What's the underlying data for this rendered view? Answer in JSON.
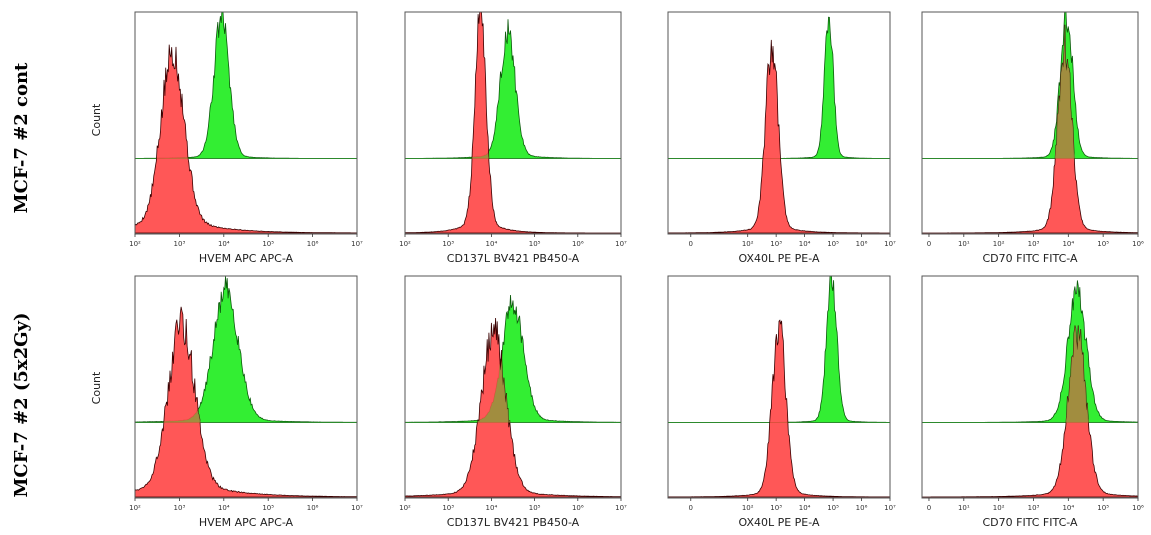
{
  "rows": [
    {
      "label": "MCF-7 #2 cont",
      "count_label": "Count"
    },
    {
      "label": "MCF-7 #2 (5x2Gy)",
      "count_label": "Count"
    }
  ],
  "colors": {
    "control": "#ff4040",
    "stained": "#33ee33",
    "overlap": "#8aa040",
    "outline": "#3a0000",
    "frame": "#555555"
  },
  "axis_types": {
    "log2to7": {
      "ticks": [
        {
          "v": 2,
          "t": "10²"
        },
        {
          "v": 3,
          "t": "10³"
        },
        {
          "v": 4,
          "t": "10⁴"
        },
        {
          "v": 5,
          "t": "10⁵"
        },
        {
          "v": 6,
          "t": "10⁶"
        },
        {
          "v": 7,
          "t": "10⁷"
        }
      ]
    },
    "biexp7": {
      "ticks": [
        {
          "v": 0,
          "t": "0"
        },
        {
          "v": 2,
          "t": "10²"
        },
        {
          "v": 3,
          "t": "10³"
        },
        {
          "v": 4,
          "t": "10⁴"
        },
        {
          "v": 5,
          "t": "10⁵"
        },
        {
          "v": 6,
          "t": "10⁶"
        },
        {
          "v": 7,
          "t": "10⁷"
        }
      ]
    },
    "biexp6": {
      "ticks": [
        {
          "v": 0,
          "t": "0"
        },
        {
          "v": 1,
          "t": "10¹"
        },
        {
          "v": 2,
          "t": "10²"
        },
        {
          "v": 3,
          "t": "10³"
        },
        {
          "v": 4,
          "t": "10⁴"
        },
        {
          "v": 5,
          "t": "10⁵"
        },
        {
          "v": 6,
          "t": "10⁶"
        }
      ]
    }
  },
  "chart_data": [
    {
      "type": "area",
      "row": 0,
      "col": 0,
      "axis": "log2to7",
      "xlabel": "HVEM APC APC-A",
      "ylabel": "Count",
      "series": [
        {
          "role": "control",
          "peak_log": 2.85,
          "width": 0.26,
          "height": 0.75,
          "tail": 0.12
        },
        {
          "role": "stained",
          "peak_log": 3.95,
          "width": 0.17,
          "height": 0.95,
          "tail": 0.03
        }
      ]
    },
    {
      "type": "area",
      "row": 0,
      "col": 1,
      "axis": "log2to7",
      "xlabel": "CD137L BV421 PB450-A",
      "ylabel": "",
      "series": [
        {
          "role": "control",
          "peak_log": 3.75,
          "width": 0.13,
          "height": 0.95,
          "tail": 0.08
        },
        {
          "role": "stained",
          "peak_log": 4.38,
          "width": 0.17,
          "height": 0.84,
          "tail": 0.05
        }
      ]
    },
    {
      "type": "area",
      "row": 0,
      "col": 2,
      "axis": "biexp7",
      "xlabel": "OX40L PE PE-A",
      "ylabel": "",
      "series": [
        {
          "role": "control",
          "peak_log": 2.85,
          "width": 0.22,
          "height": 0.82,
          "tail": 0.06
        },
        {
          "role": "stained",
          "peak_log": 4.85,
          "width": 0.15,
          "height": 0.98,
          "tail": 0.03
        }
      ]
    },
    {
      "type": "area",
      "row": 0,
      "col": 3,
      "axis": "biexp6",
      "xlabel": "CD70 FITC FITC-A",
      "ylabel": "",
      "series": [
        {
          "role": "control",
          "peak_log": 3.9,
          "width": 0.2,
          "height": 0.82,
          "tail": 0.05
        },
        {
          "role": "stained",
          "peak_log": 3.95,
          "width": 0.18,
          "height": 0.95,
          "tail": 0.03
        }
      ]
    },
    {
      "type": "area",
      "row": 1,
      "col": 0,
      "axis": "log2to7",
      "xlabel": "HVEM APC APC-A",
      "ylabel": "Count",
      "series": [
        {
          "role": "control",
          "peak_log": 3.05,
          "width": 0.3,
          "height": 0.72,
          "tail": 0.12
        },
        {
          "role": "stained",
          "peak_log": 4.05,
          "width": 0.28,
          "height": 0.88,
          "tail": 0.04
        }
      ]
    },
    {
      "type": "area",
      "row": 1,
      "col": 1,
      "axis": "log2to7",
      "xlabel": "CD137L BV421 PB450-A",
      "ylabel": "",
      "series": [
        {
          "role": "control",
          "peak_log": 4.05,
          "width": 0.28,
          "height": 0.72,
          "tail": 0.06
        },
        {
          "role": "stained",
          "peak_log": 4.5,
          "width": 0.24,
          "height": 0.8,
          "tail": 0.05
        }
      ]
    },
    {
      "type": "area",
      "row": 1,
      "col": 2,
      "axis": "biexp7",
      "xlabel": "OX40L PE PE-A",
      "ylabel": "",
      "series": [
        {
          "role": "control",
          "peak_log": 3.1,
          "width": 0.24,
          "height": 0.75,
          "tail": 0.05
        },
        {
          "role": "stained",
          "peak_log": 4.95,
          "width": 0.18,
          "height": 0.98,
          "tail": 0.03
        }
      ]
    },
    {
      "type": "area",
      "row": 1,
      "col": 3,
      "axis": "biexp6",
      "xlabel": "CD70 FITC FITC-A",
      "ylabel": "",
      "series": [
        {
          "role": "control",
          "peak_log": 4.25,
          "width": 0.26,
          "height": 0.72,
          "tail": 0.05
        },
        {
          "role": "stained",
          "peak_log": 4.25,
          "width": 0.26,
          "height": 0.9,
          "tail": 0.03
        }
      ]
    }
  ]
}
